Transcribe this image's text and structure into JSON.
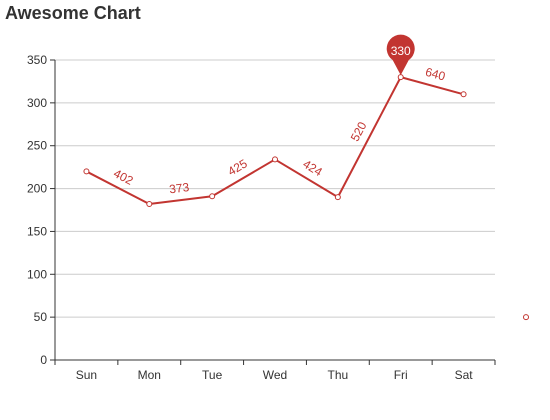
{
  "chart_data": {
    "type": "line",
    "title": "Awesome Chart",
    "categories": [
      "Sun",
      "Mon",
      "Tue",
      "Wed",
      "Thu",
      "Fri",
      "Sat"
    ],
    "series": [
      {
        "values": [
          220,
          182,
          191,
          234,
          190,
          330,
          310
        ],
        "data_labels": [
          "402",
          "373",
          "425",
          "424",
          "520",
          "640"
        ],
        "color": "#c23531"
      }
    ],
    "ylim": [
      0,
      350
    ],
    "yticks": [
      0,
      50,
      100,
      150,
      200,
      250,
      300,
      350
    ],
    "grid": true,
    "markPoint": {
      "category": "Fri",
      "value": 330,
      "label": "330"
    },
    "stray_point": {
      "value": 50
    }
  }
}
